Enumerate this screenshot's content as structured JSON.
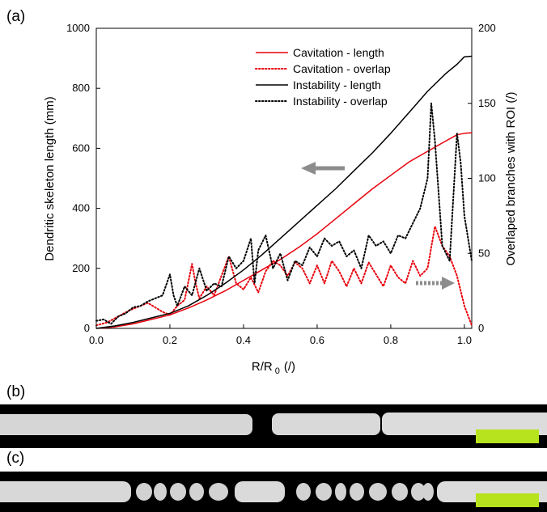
{
  "panels": {
    "a": "(a)",
    "b": "(b)",
    "c": "(c)"
  },
  "colors": {
    "cavitation": "#e8000b",
    "instability": "#000000",
    "arrow": "#8c8c8c",
    "scalebar": "#b6e21e"
  },
  "chart_data": {
    "type": "line",
    "xlabel": "R/R",
    "xlabel_sub": "0",
    "xlabel_unit": "(/)",
    "ylabel_left": "Dendritic skeleton length (mm)",
    "ylabel_right": "Overlaped branches with ROI (/)",
    "xlim": [
      0,
      1.02
    ],
    "ylim_left": [
      0,
      1000
    ],
    "ylim_right": [
      0,
      200
    ],
    "xticks": [
      0.0,
      0.2,
      0.4,
      0.6,
      0.8,
      1.0
    ],
    "xtick_labels": [
      "0.0",
      "0.2",
      "0.4",
      "0.6",
      "0.8",
      "1.0"
    ],
    "yticks_left": [
      0,
      200,
      400,
      600,
      800,
      1000
    ],
    "yticks_right": [
      0,
      50,
      100,
      150,
      200
    ],
    "legend_position": "top-right",
    "series": [
      {
        "name": "Cavitation  - length",
        "axis": "left",
        "style": "solid",
        "color": "#e8000b",
        "x": [
          0.0,
          0.05,
          0.1,
          0.15,
          0.2,
          0.25,
          0.3,
          0.35,
          0.4,
          0.45,
          0.5,
          0.55,
          0.6,
          0.65,
          0.7,
          0.75,
          0.8,
          0.85,
          0.9,
          0.95,
          0.98,
          1.0,
          1.02
        ],
        "y": [
          0,
          5,
          15,
          30,
          45,
          68,
          95,
          125,
          160,
          195,
          230,
          270,
          315,
          365,
          415,
          465,
          510,
          555,
          590,
          625,
          645,
          650,
          652
        ]
      },
      {
        "name": "Cavitation - overlap",
        "axis": "right",
        "style": "dotted",
        "color": "#e8000b",
        "x": [
          0.0,
          0.03,
          0.06,
          0.09,
          0.12,
          0.14,
          0.16,
          0.18,
          0.2,
          0.22,
          0.24,
          0.26,
          0.27,
          0.28,
          0.3,
          0.32,
          0.34,
          0.36,
          0.38,
          0.4,
          0.42,
          0.44,
          0.46,
          0.48,
          0.5,
          0.52,
          0.54,
          0.56,
          0.58,
          0.6,
          0.62,
          0.64,
          0.66,
          0.68,
          0.7,
          0.72,
          0.74,
          0.76,
          0.78,
          0.8,
          0.82,
          0.84,
          0.86,
          0.88,
          0.9,
          0.92,
          0.94,
          0.96,
          0.98,
          1.0,
          1.02
        ],
        "y": [
          2,
          4,
          8,
          12,
          15,
          17,
          14,
          11,
          9,
          15,
          19,
          43,
          30,
          20,
          28,
          22,
          35,
          48,
          30,
          26,
          34,
          24,
          38,
          45,
          42,
          35,
          44,
          40,
          30,
          42,
          30,
          45,
          38,
          28,
          40,
          30,
          44,
          36,
          28,
          42,
          34,
          30,
          45,
          35,
          40,
          68,
          55,
          48,
          35,
          15,
          2
        ]
      },
      {
        "name": "Instability - length",
        "axis": "left",
        "style": "solid",
        "color": "#000000",
        "x": [
          0.0,
          0.05,
          0.1,
          0.15,
          0.2,
          0.25,
          0.3,
          0.35,
          0.4,
          0.45,
          0.5,
          0.55,
          0.6,
          0.65,
          0.7,
          0.75,
          0.8,
          0.85,
          0.9,
          0.95,
          0.98,
          1.0,
          1.02
        ],
        "y": [
          0,
          8,
          20,
          35,
          50,
          75,
          110,
          150,
          195,
          245,
          300,
          355,
          410,
          465,
          525,
          585,
          650,
          720,
          790,
          850,
          880,
          905,
          907
        ]
      },
      {
        "name": "Instability - overlap",
        "axis": "right",
        "style": "dotted",
        "color": "#000000",
        "x": [
          0.0,
          0.02,
          0.04,
          0.06,
          0.08,
          0.1,
          0.12,
          0.14,
          0.16,
          0.18,
          0.2,
          0.21,
          0.22,
          0.24,
          0.26,
          0.28,
          0.3,
          0.32,
          0.34,
          0.36,
          0.38,
          0.4,
          0.42,
          0.43,
          0.44,
          0.46,
          0.48,
          0.5,
          0.52,
          0.54,
          0.56,
          0.58,
          0.6,
          0.62,
          0.64,
          0.66,
          0.68,
          0.7,
          0.72,
          0.74,
          0.76,
          0.78,
          0.8,
          0.82,
          0.84,
          0.86,
          0.88,
          0.9,
          0.91,
          0.92,
          0.93,
          0.94,
          0.96,
          0.98,
          0.99,
          1.0,
          1.02
        ],
        "y": [
          5,
          6,
          3,
          8,
          10,
          14,
          15,
          18,
          20,
          22,
          36,
          22,
          15,
          28,
          22,
          40,
          25,
          30,
          28,
          48,
          40,
          45,
          60,
          30,
          52,
          62,
          40,
          50,
          32,
          45,
          42,
          54,
          48,
          60,
          55,
          58,
          48,
          52,
          40,
          62,
          55,
          58,
          50,
          62,
          60,
          70,
          80,
          100,
          150,
          125,
          90,
          55,
          45,
          130,
          110,
          75,
          45
        ]
      }
    ]
  },
  "scalebars": {
    "b": "",
    "c": ""
  }
}
